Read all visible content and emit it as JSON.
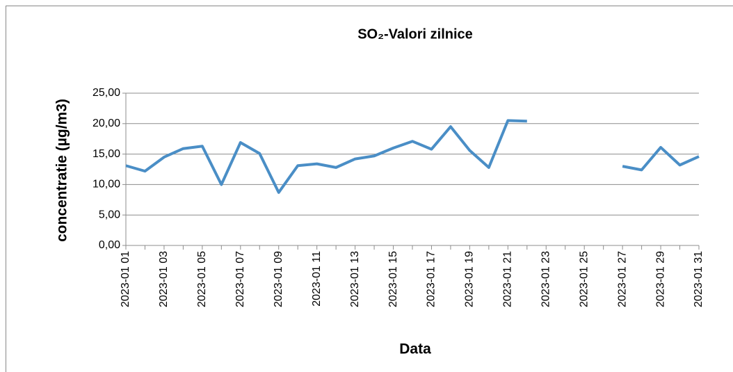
{
  "chart_data": {
    "type": "line",
    "title": "SO₂-Valori zilnice",
    "x_label": "Data",
    "y_label": "concentratie (µg/m3)",
    "categories": [
      "2023-01 01",
      null,
      "2023-01 03",
      null,
      "2023-01 05",
      null,
      "2023-01 07",
      null,
      "2023-01 09",
      null,
      "2023-01 11",
      null,
      "2023-01 13",
      null,
      "2023-01 15",
      null,
      "2023-01 17",
      null,
      "2023-01 19",
      null,
      "2023-01 21",
      null,
      "2023-01 23",
      null,
      "2023-01 25",
      null,
      "2023-01 27",
      null,
      "2023-01 29",
      null,
      "2023-01 31"
    ],
    "series": [
      {
        "name": "SO2",
        "color": "#4a8ec6",
        "values": [
          13.1,
          12.2,
          14.5,
          15.9,
          16.3,
          10.0,
          16.9,
          15.1,
          8.7,
          13.1,
          13.4,
          12.8,
          14.2,
          14.7,
          16.0,
          17.1,
          15.8,
          19.5,
          15.6,
          12.8,
          20.5,
          20.4,
          null,
          null,
          null,
          null,
          13.0,
          12.4,
          16.1,
          13.2,
          14.6
        ]
      }
    ],
    "ylim": [
      0,
      25
    ],
    "yticks": [
      {
        "value": 0,
        "label": "0,00"
      },
      {
        "value": 5,
        "label": "5,00"
      },
      {
        "value": 10,
        "label": "10,00"
      },
      {
        "value": 15,
        "label": "15,00"
      },
      {
        "value": 20,
        "label": "20,00"
      },
      {
        "value": 25,
        "label": "25,00"
      }
    ],
    "grid": true
  }
}
